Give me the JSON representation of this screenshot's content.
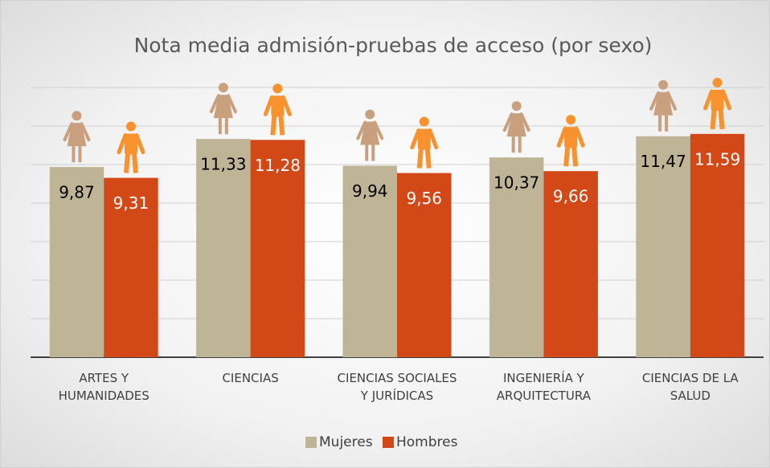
{
  "chart_data": {
    "type": "bar",
    "title": "Nota media admisión-pruebas de acceso (por sexo)",
    "categories": [
      "ARTES Y HUMANIDADES",
      "CIENCIAS",
      "CIENCIAS SOCIALES Y JURÍDICAS",
      "INGENIERÍA Y ARQUITECTURA",
      "CIENCIAS DE LA SALUD"
    ],
    "series": [
      {
        "name": "Mujeres",
        "color": "#bfb496",
        "values": [
          9.87,
          11.33,
          9.94,
          10.37,
          11.47
        ],
        "value_labels": [
          "9,87",
          "11,33",
          "9,94",
          "10,37",
          "11,47"
        ]
      },
      {
        "name": "Hombres",
        "color": "#d34817",
        "values": [
          9.31,
          11.28,
          9.56,
          9.66,
          11.59
        ],
        "value_labels": [
          "9,31",
          "11,28",
          "9,56",
          "9,66",
          "11,59"
        ]
      }
    ],
    "ylim": [
      0,
      14
    ],
    "yticks": [
      0,
      2,
      4,
      6,
      8,
      10,
      12,
      14
    ],
    "grid": true,
    "legend": "bottom"
  }
}
